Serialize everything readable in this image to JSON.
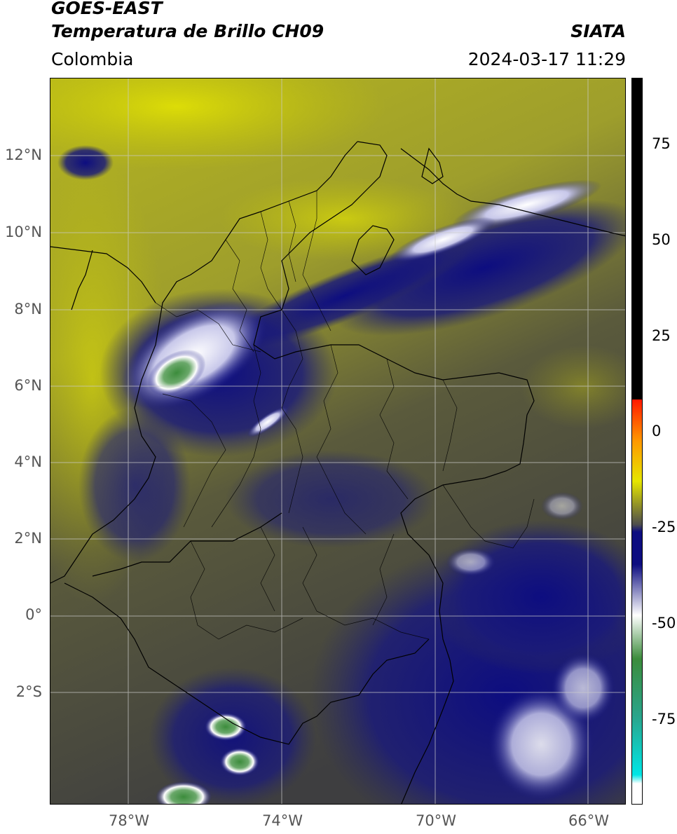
{
  "header": {
    "satellite": "GOES-EAST",
    "product": "Temperatura de Brillo CH09",
    "region": "Colombia",
    "source": "SIATA",
    "datetime": "2024-03-17 11:29"
  },
  "map": {
    "lat_labels": [
      "12°N",
      "10°N",
      "8°N",
      "6°N",
      "4°N",
      "2°N",
      "0°",
      "2°S"
    ],
    "lon_labels": [
      "78°W",
      "74°W",
      "70°W",
      "66°W"
    ]
  },
  "colorbar": {
    "ticks": [
      "75",
      "50",
      "25",
      "0",
      "-25",
      "-50",
      "-75"
    ],
    "colors": {
      "black": "#000000",
      "red": "#ff1a00",
      "orange": "#ff9900",
      "yellow": "#e6e600",
      "olive": "#8c8c2a",
      "gray": "#4d4d4d",
      "navy": "#0d0d80",
      "white": "#ffffff",
      "green": "#3c8c3c",
      "teal": "#2aa58c",
      "cyan": "#00e6e6"
    }
  }
}
